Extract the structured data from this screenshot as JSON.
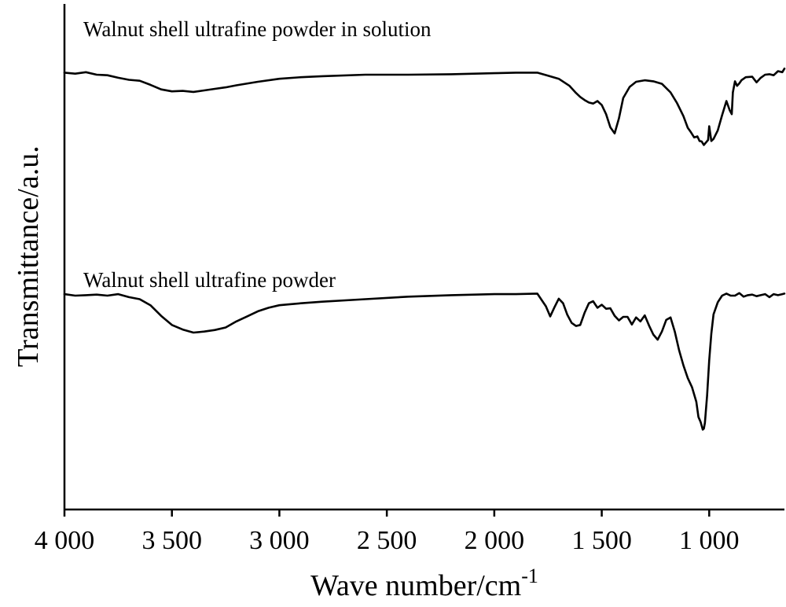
{
  "chart_data": {
    "type": "line",
    "title": "",
    "xlabel": "Wave number/cm",
    "xlabel_superscript": "-1",
    "ylabel": "Transmittance/a.u.",
    "xlim": [
      4000,
      650
    ],
    "x_reversed": true,
    "x_ticks": [
      4000,
      3500,
      3000,
      2500,
      2000,
      1500,
      1000
    ],
    "x_tick_labels": [
      "4 000",
      "3 500",
      "3 000",
      "2 500",
      "2 000",
      "1 500",
      "1 000"
    ],
    "ylim": [
      0,
      100
    ],
    "y_ticks_shown": false,
    "grid": false,
    "series": [
      {
        "name": "Walnut shell ultrafine powder in solution",
        "x": [
          4000,
          3950,
          3900,
          3850,
          3800,
          3750,
          3700,
          3650,
          3600,
          3550,
          3500,
          3450,
          3400,
          3350,
          3300,
          3250,
          3200,
          3100,
          3000,
          2900,
          2800,
          2600,
          2400,
          2200,
          2000,
          1900,
          1800,
          1750,
          1700,
          1650,
          1620,
          1600,
          1580,
          1560,
          1540,
          1520,
          1500,
          1480,
          1460,
          1440,
          1420,
          1400,
          1370,
          1340,
          1300,
          1260,
          1220,
          1180,
          1150,
          1120,
          1100,
          1085,
          1070,
          1055,
          1045,
          1035,
          1025,
          1015,
          1005,
          1000,
          990,
          980,
          960,
          940,
          920,
          905,
          895,
          890,
          880,
          870,
          860,
          850,
          830,
          800,
          780,
          760,
          740,
          720,
          700,
          680,
          660,
          650
        ],
        "y": [
          86.4,
          86.2,
          86.5,
          86.0,
          85.9,
          85.4,
          85.0,
          84.8,
          84.0,
          83.1,
          82.7,
          82.8,
          82.6,
          82.9,
          83.2,
          83.5,
          83.9,
          84.6,
          85.2,
          85.5,
          85.7,
          86.0,
          86.0,
          86.1,
          86.3,
          86.4,
          86.4,
          85.8,
          85.2,
          83.8,
          82.4,
          81.6,
          81.0,
          80.5,
          80.3,
          80.8,
          80.0,
          78.2,
          75.6,
          74.4,
          77.4,
          81.4,
          83.6,
          84.6,
          84.9,
          84.7,
          84.2,
          82.5,
          80.4,
          77.8,
          75.5,
          74.6,
          73.6,
          73.8,
          72.9,
          72.8,
          72.1,
          72.6,
          73.1,
          75.8,
          72.9,
          73.3,
          75.0,
          78.0,
          80.8,
          79.0,
          78.2,
          82.5,
          84.7,
          83.8,
          84.3,
          84.9,
          85.5,
          85.6,
          84.5,
          85.4,
          86.0,
          86.1,
          85.9,
          86.7,
          86.5,
          87.2
        ]
      },
      {
        "name": "Walnut shell ultrafine powder",
        "x": [
          4000,
          3950,
          3900,
          3850,
          3800,
          3750,
          3700,
          3650,
          3600,
          3550,
          3500,
          3450,
          3400,
          3350,
          3300,
          3250,
          3200,
          3150,
          3100,
          3050,
          3000,
          2950,
          2900,
          2800,
          2600,
          2400,
          2200,
          2000,
          1900,
          1800,
          1760,
          1740,
          1720,
          1700,
          1680,
          1660,
          1640,
          1620,
          1600,
          1580,
          1560,
          1540,
          1520,
          1500,
          1480,
          1460,
          1440,
          1420,
          1400,
          1380,
          1360,
          1340,
          1320,
          1300,
          1280,
          1260,
          1240,
          1220,
          1200,
          1180,
          1160,
          1140,
          1120,
          1100,
          1080,
          1060,
          1050,
          1040,
          1030,
          1025,
          1020,
          1010,
          1000,
          990,
          980,
          960,
          940,
          920,
          900,
          880,
          860,
          840,
          820,
          800,
          780,
          760,
          740,
          720,
          700,
          680,
          660,
          650
        ],
        "y": [
          42.6,
          42.3,
          42.4,
          42.5,
          42.3,
          42.6,
          42.0,
          41.6,
          40.4,
          38.3,
          36.5,
          35.6,
          35.0,
          35.2,
          35.5,
          36.0,
          37.2,
          38.2,
          39.2,
          39.9,
          40.4,
          40.6,
          40.8,
          41.1,
          41.6,
          42.1,
          42.4,
          42.6,
          42.6,
          42.7,
          40.2,
          38.2,
          40.0,
          41.7,
          40.8,
          38.5,
          36.9,
          36.3,
          36.5,
          38.9,
          40.8,
          41.2,
          39.9,
          40.5,
          39.7,
          39.8,
          38.3,
          37.4,
          38.1,
          38.1,
          36.6,
          38.0,
          37.2,
          38.4,
          36.4,
          34.6,
          33.6,
          35.2,
          37.5,
          38.0,
          35.2,
          31.5,
          28.5,
          26.0,
          24.2,
          21.3,
          18.3,
          17.3,
          15.8,
          16.0,
          17.1,
          22.5,
          29.5,
          34.8,
          38.6,
          41.0,
          42.3,
          42.7,
          42.3,
          42.3,
          42.8,
          42.1,
          42.4,
          42.5,
          42.2,
          42.4,
          42.6,
          42.0,
          42.6,
          42.4,
          42.6,
          42.7
        ]
      }
    ]
  }
}
